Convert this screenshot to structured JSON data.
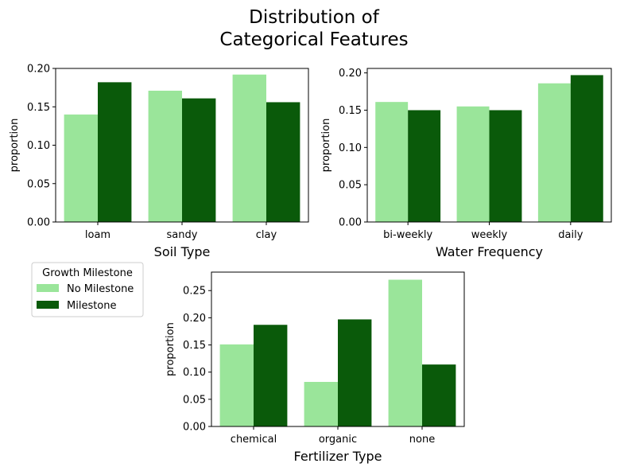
{
  "figure": {
    "title_line1": "Distribution of",
    "title_line2": "Categorical Features"
  },
  "legend": {
    "title": "Growth Milestone",
    "entries": [
      {
        "label": "No Milestone",
        "color": "#9ae59a"
      },
      {
        "label": "Milestone",
        "color": "#0a5a0a"
      }
    ]
  },
  "chart_data": [
    {
      "type": "bar",
      "xlabel": "Soil Type",
      "ylabel": "proportion",
      "categories": [
        "loam",
        "sandy",
        "clay"
      ],
      "ylim": [
        0,
        0.2
      ],
      "yticks": [
        "0.00",
        "0.05",
        "0.10",
        "0.15",
        "0.20"
      ],
      "series": [
        {
          "name": "No Milestone",
          "values": [
            0.14,
            0.171,
            0.192
          ]
        },
        {
          "name": "Milestone",
          "values": [
            0.182,
            0.161,
            0.156
          ]
        }
      ]
    },
    {
      "type": "bar",
      "xlabel": "Water Frequency",
      "ylabel": "proportion",
      "categories": [
        "bi-weekly",
        "weekly",
        "daily"
      ],
      "ylim": [
        0,
        0.206
      ],
      "yticks": [
        "0.00",
        "0.05",
        "0.10",
        "0.15",
        "0.20"
      ],
      "series": [
        {
          "name": "No Milestone",
          "values": [
            0.161,
            0.155,
            0.186
          ]
        },
        {
          "name": "Milestone",
          "values": [
            0.15,
            0.15,
            0.197
          ]
        }
      ]
    },
    {
      "type": "bar",
      "xlabel": "Fertilizer Type",
      "ylabel": "proportion",
      "categories": [
        "chemical",
        "organic",
        "none"
      ],
      "ylim": [
        0,
        0.284
      ],
      "yticks": [
        "0.00",
        "0.05",
        "0.10",
        "0.15",
        "0.20",
        "0.25"
      ],
      "series": [
        {
          "name": "No Milestone",
          "values": [
            0.151,
            0.082,
            0.27
          ]
        },
        {
          "name": "Milestone",
          "values": [
            0.187,
            0.197,
            0.114
          ]
        }
      ]
    }
  ]
}
